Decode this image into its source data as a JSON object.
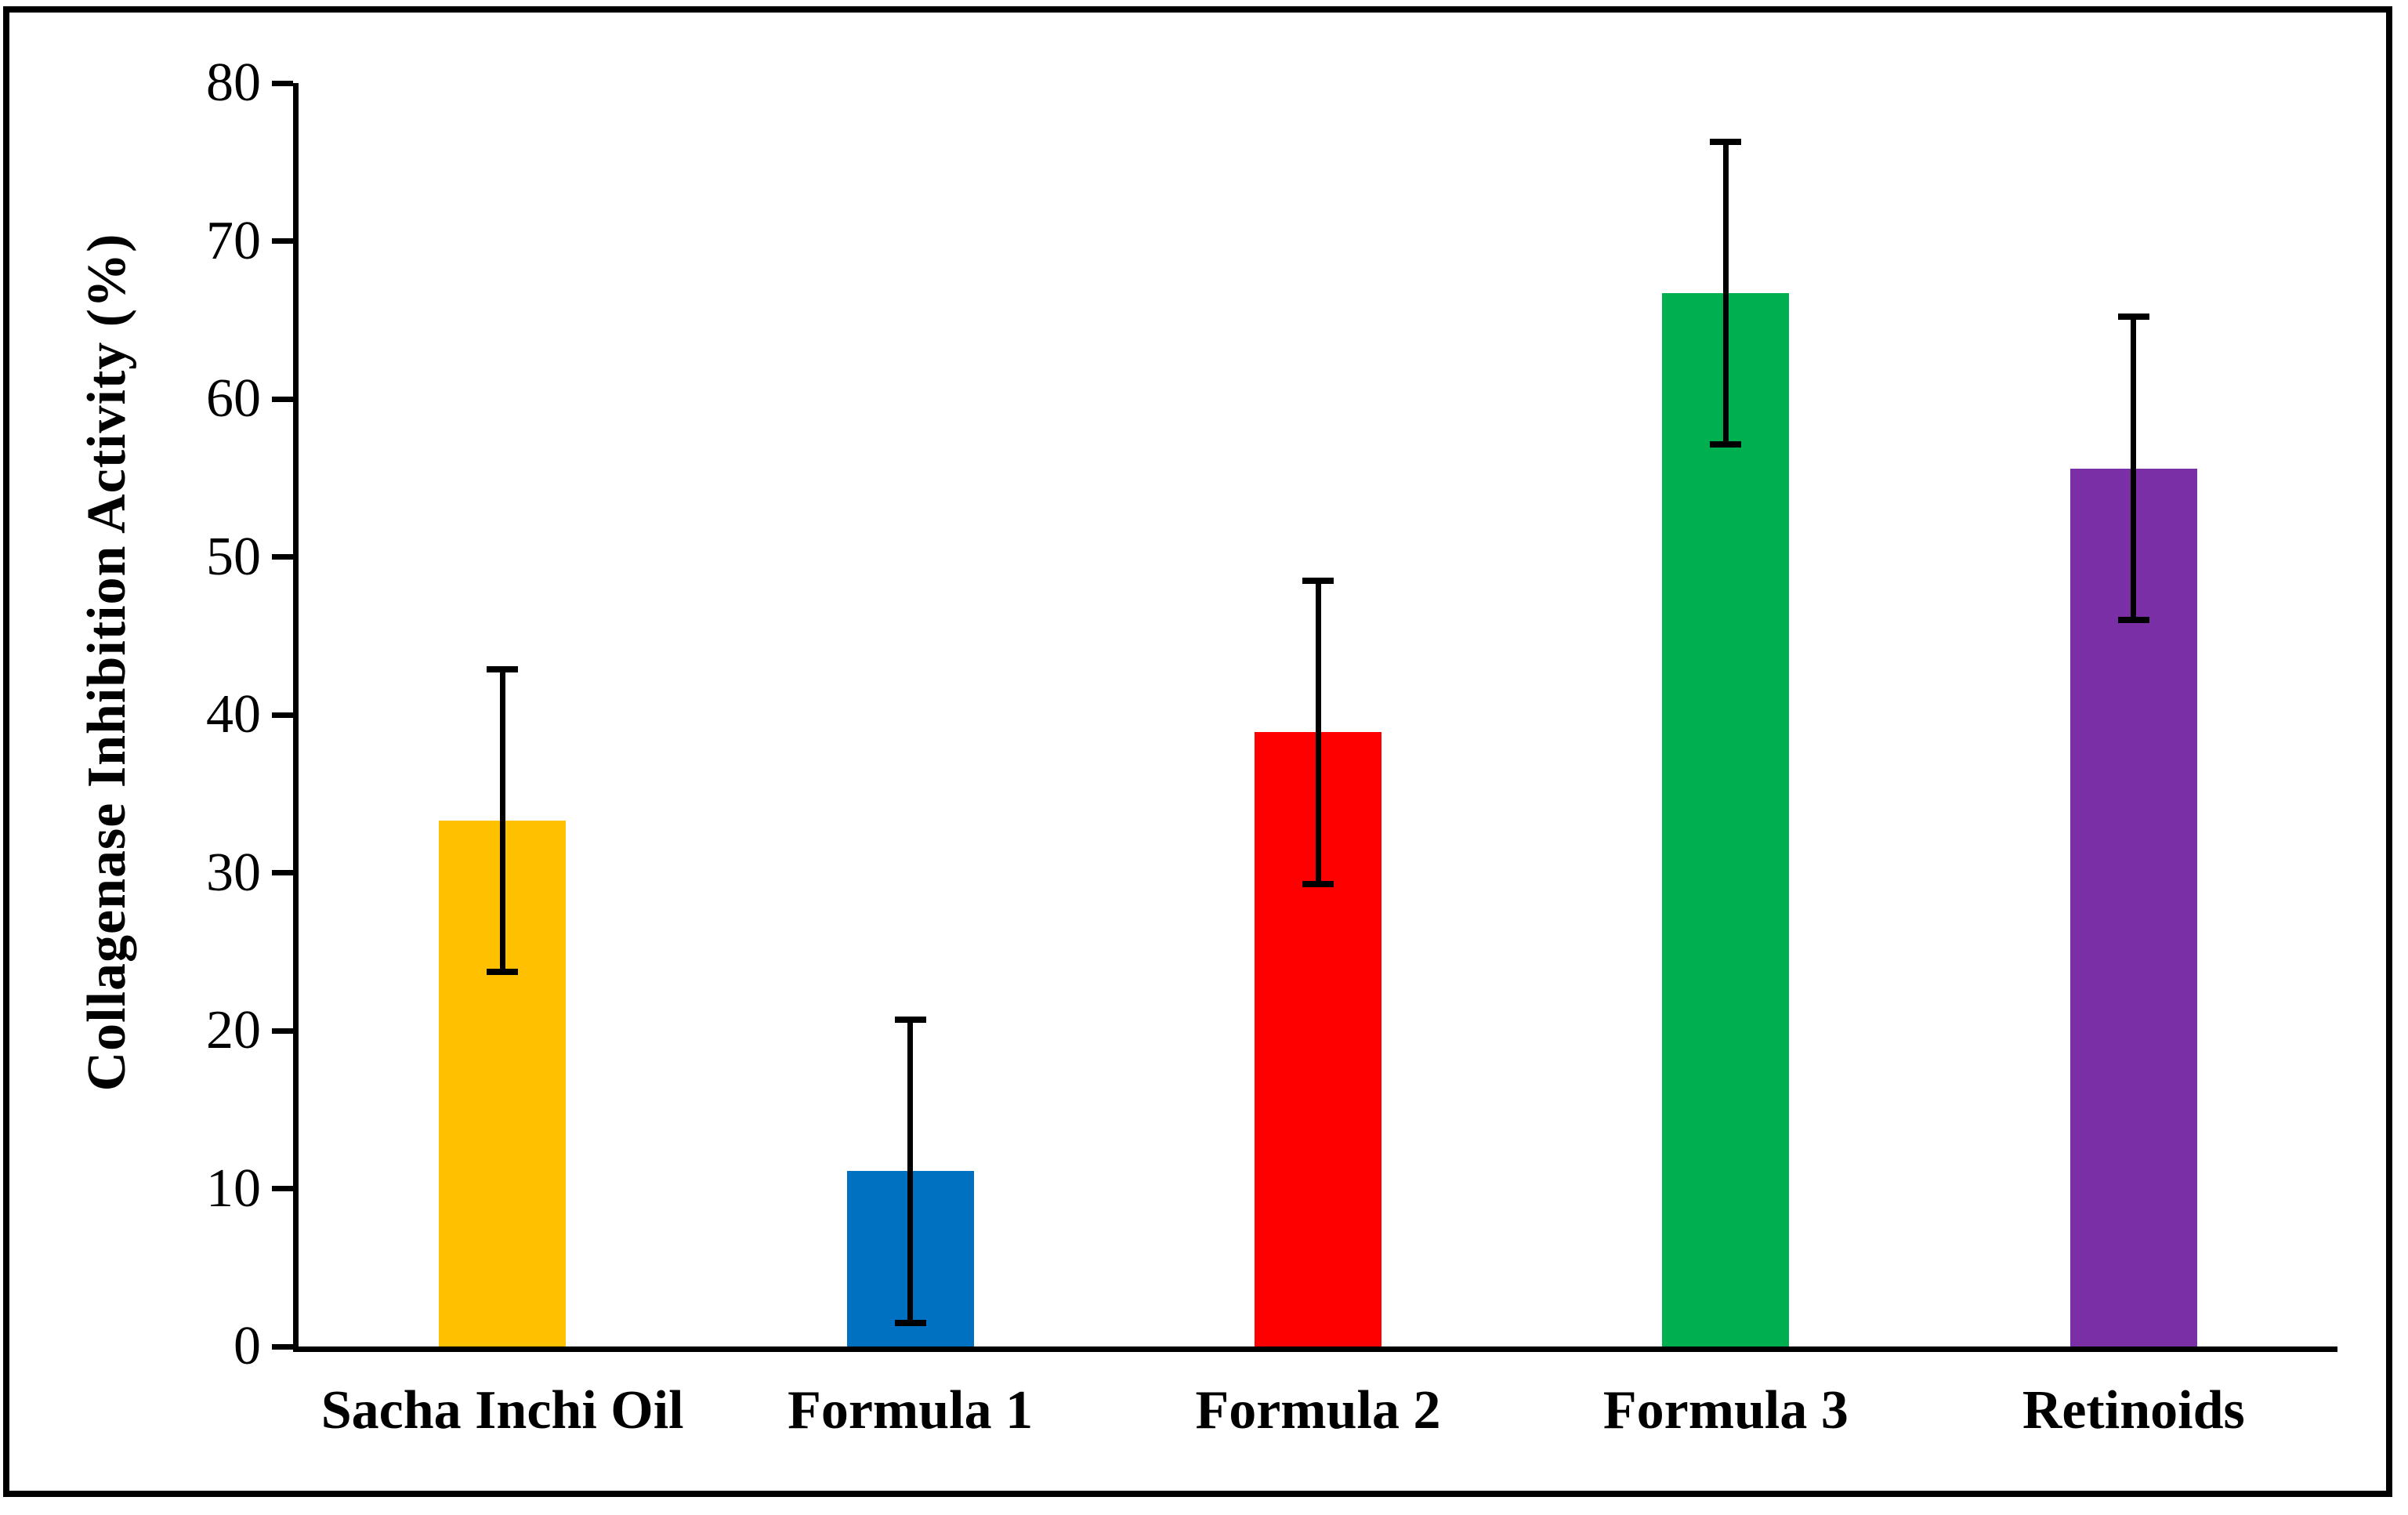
{
  "figure": {
    "background": "#ffffff",
    "frame_color": "#000000"
  },
  "chart_data": {
    "type": "bar",
    "title": "",
    "xlabel": "",
    "ylabel": "Collagenase Inhibition Activity (%)",
    "categories": [
      "Sacha Inchi Oil",
      "Formula 1",
      "Formula 2",
      "Formula 3",
      "Retinoids"
    ],
    "values": [
      33.3,
      11.1,
      38.9,
      66.7,
      55.6
    ],
    "errors": [
      9.6,
      9.6,
      9.6,
      9.6,
      9.6
    ],
    "bar_colors": [
      "#FFC000",
      "#0070C0",
      "#FF0000",
      "#00B050",
      "#7B2FA6"
    ],
    "error_bar_color": "#000000",
    "axis_color": "#000000",
    "ylim": [
      0,
      80
    ],
    "yticks": [
      0,
      10,
      20,
      30,
      40,
      50,
      60,
      70,
      80
    ],
    "grid": false,
    "legend": null
  }
}
